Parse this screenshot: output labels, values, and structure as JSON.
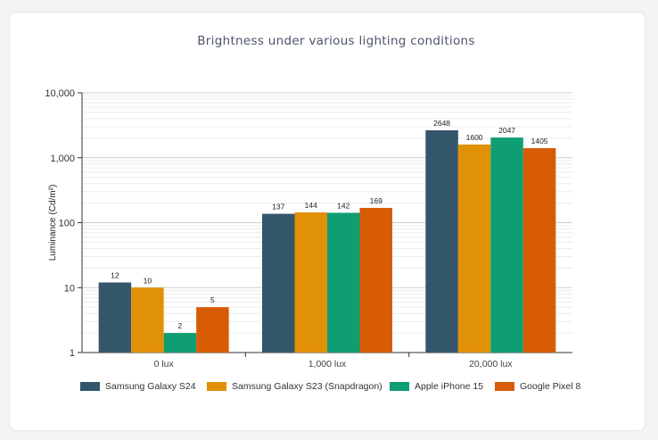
{
  "title": "Brightness under various lighting conditions",
  "chart_data": {
    "type": "bar",
    "title": "Brightness under various lighting conditions",
    "xlabel": "",
    "ylabel": "Luminance (Cd/m²)",
    "yscale": "log",
    "ylim": [
      1,
      10000
    ],
    "y_ticks": [
      "1",
      "10",
      "100",
      "1,000",
      "10,000"
    ],
    "categories": [
      "0 lux",
      "1,000 lux",
      "20,000 lux"
    ],
    "series": [
      {
        "name": "Samsung Galaxy S24",
        "color": "#34566b",
        "values": [
          12,
          137,
          2648
        ]
      },
      {
        "name": "Samsung Galaxy S23 (Snapdragon)",
        "color": "#e09106",
        "values": [
          10,
          144,
          1600
        ]
      },
      {
        "name": "Apple iPhone 15",
        "color": "#0f9e74",
        "values": [
          2,
          142,
          2047
        ]
      },
      {
        "name": "Google Pixel 8",
        "color": "#d75c05",
        "values": [
          5,
          169,
          1405
        ]
      }
    ],
    "grid": true,
    "legend_position": "bottom"
  }
}
